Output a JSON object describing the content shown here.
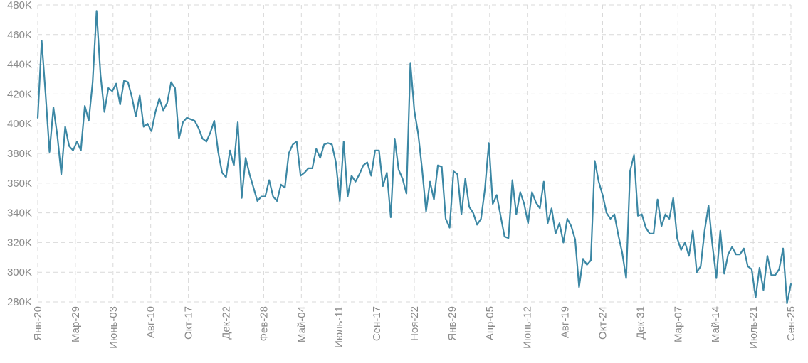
{
  "chart_data": {
    "type": "line",
    "title": "",
    "xlabel": "",
    "ylabel": "",
    "ylim": [
      280000,
      480000
    ],
    "grid": true,
    "legend": "none",
    "series_color": "#3b87a4",
    "y_ticks": [
      280000,
      300000,
      320000,
      340000,
      360000,
      380000,
      400000,
      420000,
      440000,
      460000,
      480000
    ],
    "y_tick_labels": [
      "280K",
      "300K",
      "320K",
      "340K",
      "360K",
      "380K",
      "400K",
      "420K",
      "440K",
      "460K",
      "480K"
    ],
    "x_tick_labels": [
      "Янв-20",
      "Мар-29",
      "Июнь-03",
      "Авг-10",
      "Окт-17",
      "Дек-22",
      "Фев-28",
      "Май-04",
      "Июль-11",
      "Сен-17",
      "Ноя-22",
      "Янв-29",
      "Апр-05",
      "Июнь-12",
      "Авг-19",
      "Окт-24",
      "Дек-31",
      "Мар-07",
      "Май-14",
      "Июль-21",
      "Сен-25"
    ],
    "series": [
      {
        "values": [
          404000,
          456000,
          420000,
          381000,
          411000,
          392000,
          366000,
          398000,
          385000,
          382000,
          388000,
          382000,
          412000,
          402000,
          428000,
          476000,
          433000,
          408000,
          424000,
          422000,
          427000,
          413000,
          429000,
          428000,
          418000,
          405000,
          419000,
          398000,
          400000,
          395000,
          408000,
          417000,
          409000,
          414000,
          428000,
          424000,
          390000,
          401000,
          404000,
          403000,
          402000,
          397000,
          390000,
          388000,
          394000,
          402000,
          381000,
          367000,
          364000,
          382000,
          372000,
          401000,
          350000,
          377000,
          366000,
          357000,
          348000,
          351000,
          351000,
          362000,
          351000,
          348000,
          359000,
          357000,
          380000,
          386000,
          388000,
          365000,
          367000,
          370000,
          370000,
          383000,
          377000,
          386000,
          387000,
          386000,
          374000,
          348000,
          388000,
          351000,
          365000,
          361000,
          366000,
          372000,
          374000,
          365000,
          382000,
          382000,
          358000,
          367000,
          337000,
          390000,
          369000,
          363000,
          353000,
          441000,
          409000,
          393000,
          369000,
          341000,
          361000,
          349000,
          372000,
          371000,
          336000,
          330000,
          368000,
          366000,
          339000,
          363000,
          344000,
          340000,
          332000,
          336000,
          356000,
          387000,
          346000,
          352000,
          338000,
          324000,
          323000,
          362000,
          339000,
          354000,
          346000,
          333000,
          354000,
          347000,
          343000,
          361000,
          333000,
          343000,
          326000,
          333000,
          320000,
          336000,
          331000,
          322000,
          290000,
          309000,
          305000,
          308000,
          375000,
          361000,
          352000,
          340000,
          336000,
          339000,
          325000,
          313000,
          296000,
          368000,
          379000,
          338000,
          339000,
          330000,
          326000,
          326000,
          349000,
          331000,
          339000,
          336000,
          350000,
          323000,
          315000,
          320000,
          311000,
          328000,
          300000,
          304000,
          328000,
          345000,
          318000,
          296000,
          328000,
          299000,
          312000,
          317000,
          312000,
          312000,
          316000,
          304000,
          302000,
          283000,
          303000,
          288000,
          311000,
          298000,
          298000,
          302000,
          316000,
          279000,
          292000
        ]
      }
    ]
  }
}
